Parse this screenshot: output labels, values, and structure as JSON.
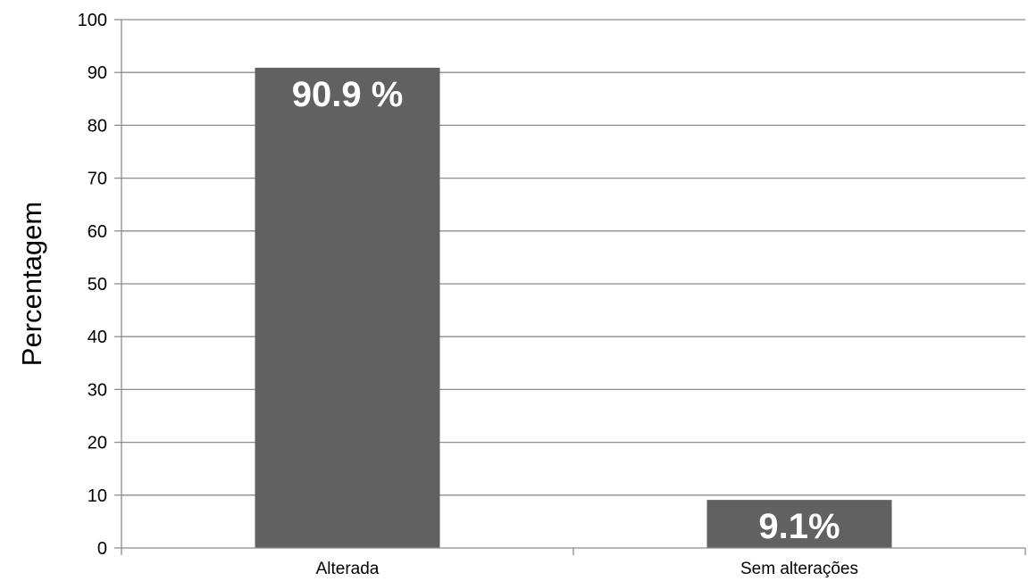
{
  "chart_data": {
    "type": "bar",
    "categories": [
      "Alterada",
      "Sem alterações"
    ],
    "values": [
      90.9,
      9.1
    ],
    "data_labels": [
      "90.9 %",
      "9.1%"
    ],
    "title": "",
    "xlabel": "",
    "ylabel": "Percentagem",
    "ylim": [
      0,
      100
    ],
    "yticks": [
      0,
      10,
      20,
      30,
      40,
      50,
      60,
      70,
      80,
      90,
      100
    ],
    "grid": true,
    "legend": "none",
    "colors": {
      "bar": "#616161",
      "grid": "#8c8c8c",
      "axis": "#8c8c8c",
      "data_label": "#ffffff"
    }
  }
}
